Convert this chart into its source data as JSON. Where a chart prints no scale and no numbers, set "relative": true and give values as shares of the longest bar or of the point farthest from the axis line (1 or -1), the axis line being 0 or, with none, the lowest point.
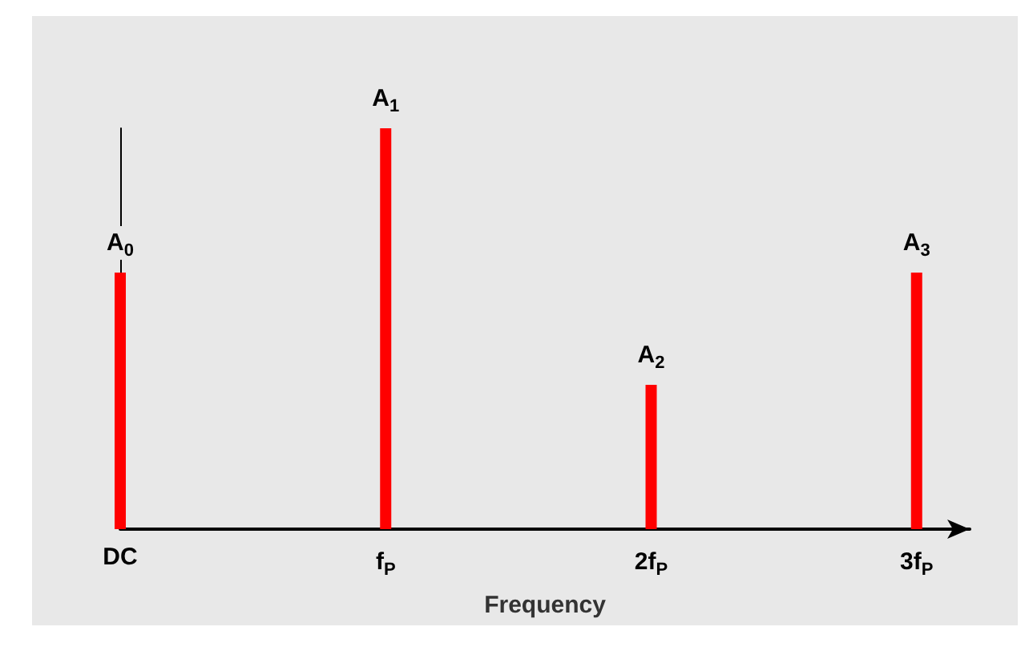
{
  "chart_data": {
    "type": "bar",
    "relative": true,
    "xlabel": "Frequency",
    "categories": [
      "DC",
      "f$_{P}$",
      "2f$_{P}$",
      "3f$_{P}$"
    ],
    "values": [
      0.64,
      1,
      0.36,
      0.64
    ],
    "annotations": [
      {
        "text": "A$_{0}$",
        "x": "DC",
        "y": 0.64
      },
      {
        "text": "A$_{1}$",
        "x": "f$_{P}$",
        "y": 1
      },
      {
        "text": "A$_{2}$",
        "x": "2f$_{P}$",
        "y": 0.36
      },
      {
        "text": "A$_{3}$",
        "x": "3f$_{P}$",
        "y": 0.64
      }
    ],
    "color": "#ff0000",
    "grid": false
  }
}
